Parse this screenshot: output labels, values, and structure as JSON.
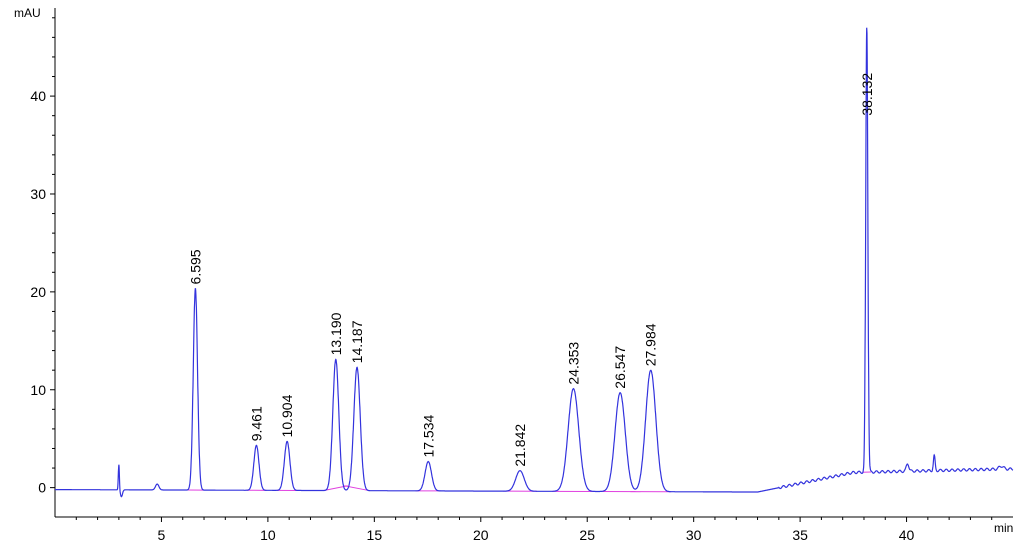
{
  "chart_data": {
    "type": "line",
    "y_unit": "mAU",
    "x_unit": "min",
    "xlim": [
      0,
      45
    ],
    "ylim": [
      -3,
      49
    ],
    "x_ticks": [
      5,
      10,
      15,
      20,
      25,
      30,
      35,
      40
    ],
    "y_ticks": [
      0,
      10,
      20,
      30,
      40
    ],
    "colors": {
      "signal": "#3333dd",
      "baseline": "#e040e0",
      "axis": "#000000"
    },
    "peaks": [
      {
        "t": 6.595,
        "label": "6.595",
        "height": 20.6,
        "width": 0.1
      },
      {
        "t": 9.461,
        "label": "9.461",
        "height": 4.6,
        "width": 0.12
      },
      {
        "t": 10.904,
        "label": "10.904",
        "height": 5.0,
        "width": 0.13
      },
      {
        "t": 13.19,
        "label": "13.190",
        "height": 13.4,
        "width": 0.14
      },
      {
        "t": 14.187,
        "label": "14.187",
        "height": 12.6,
        "width": 0.15
      },
      {
        "t": 17.534,
        "label": "17.534",
        "height": 3.0,
        "width": 0.15
      },
      {
        "t": 21.842,
        "label": "21.842",
        "height": 2.1,
        "width": 0.2
      },
      {
        "t": 24.353,
        "label": "24.353",
        "height": 10.5,
        "width": 0.25
      },
      {
        "t": 26.547,
        "label": "26.547",
        "height": 10.1,
        "width": 0.24
      },
      {
        "t": 27.984,
        "label": "27.984",
        "height": 12.4,
        "width": 0.24
      },
      {
        "t": 38.132,
        "label": "38.132",
        "height": 45.5,
        "width": 0.05
      }
    ],
    "minor_features": [
      {
        "t": 3.0,
        "height": 2.6,
        "width": 0.025
      },
      {
        "t": 3.12,
        "height": -0.7,
        "width": 0.05
      },
      {
        "t": 4.8,
        "height": 0.6,
        "width": 0.08
      },
      {
        "t": 40.05,
        "height": 0.8,
        "width": 0.06
      },
      {
        "t": 41.3,
        "height": 1.5,
        "width": 0.04
      },
      {
        "t": 44.45,
        "height": 0.3,
        "width": 0.1
      }
    ]
  }
}
